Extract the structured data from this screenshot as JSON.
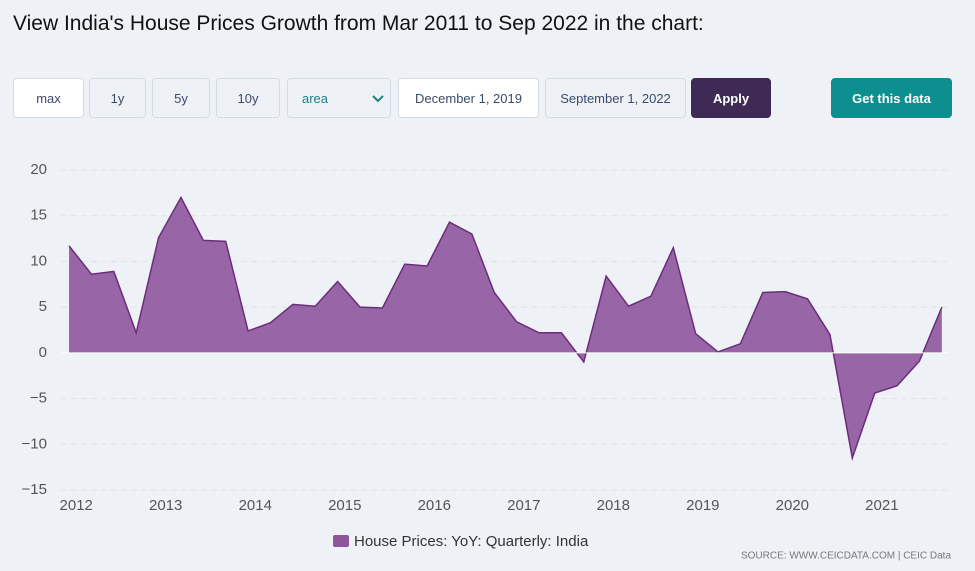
{
  "header": {
    "title": "View India's House Prices Growth from Mar 2011 to Sep 2022 in the chart:"
  },
  "controls": {
    "ranges": [
      "max",
      "1y",
      "5y",
      "10y"
    ],
    "chart_type": "area",
    "start_date": "December 1, 2019",
    "end_date": "September 1, 2022",
    "apply": "Apply",
    "get_data": "Get this data"
  },
  "chart_data": {
    "type": "area",
    "grid": true,
    "legend": "bottom",
    "source": "SOURCE: WWW.CEICDATA.COM | CEIC Data",
    "x": [
      2011.92,
      2012.17,
      2012.42,
      2012.67,
      2012.92,
      2013.17,
      2013.42,
      2013.67,
      2013.92,
      2014.17,
      2014.42,
      2014.67,
      2014.92,
      2015.17,
      2015.42,
      2015.67,
      2015.92,
      2016.17,
      2016.42,
      2016.67,
      2016.92,
      2017.17,
      2017.42,
      2017.67,
      2017.92,
      2018.17,
      2018.42,
      2018.67,
      2018.92,
      2019.17,
      2019.42,
      2019.67,
      2019.92,
      2020.17,
      2020.42,
      2020.67,
      2020.92,
      2021.17,
      2021.42,
      2021.67
    ],
    "series": [
      {
        "name": "House Prices: YoY: Quarterly: India",
        "color": "#8e559c",
        "line_color": "#6b2d7c",
        "values": [
          11.7,
          8.6,
          8.9,
          2.2,
          12.6,
          17.0,
          12.3,
          12.2,
          2.4,
          3.3,
          5.3,
          5.1,
          7.8,
          5.0,
          4.9,
          9.7,
          9.5,
          14.3,
          13.0,
          6.6,
          3.4,
          2.2,
          2.2,
          -1.0,
          8.4,
          5.1,
          6.2,
          11.5,
          2.1,
          0.1,
          1.0,
          6.6,
          6.7,
          5.9,
          2.0,
          -11.5,
          -4.4,
          -3.6,
          -0.9,
          5.0
        ]
      }
    ],
    "xlim": [
      2011.83,
      2021.75
    ],
    "xticks": [
      2012,
      2013,
      2014,
      2015,
      2016,
      2017,
      2018,
      2019,
      2020,
      2021
    ],
    "ylim": [
      -15,
      20
    ],
    "yticks": [
      {
        "value": -15,
        "label": "−15"
      },
      {
        "value": -10,
        "label": "−10"
      },
      {
        "value": -5,
        "label": "−5"
      },
      0,
      5,
      10,
      15,
      20
    ]
  }
}
